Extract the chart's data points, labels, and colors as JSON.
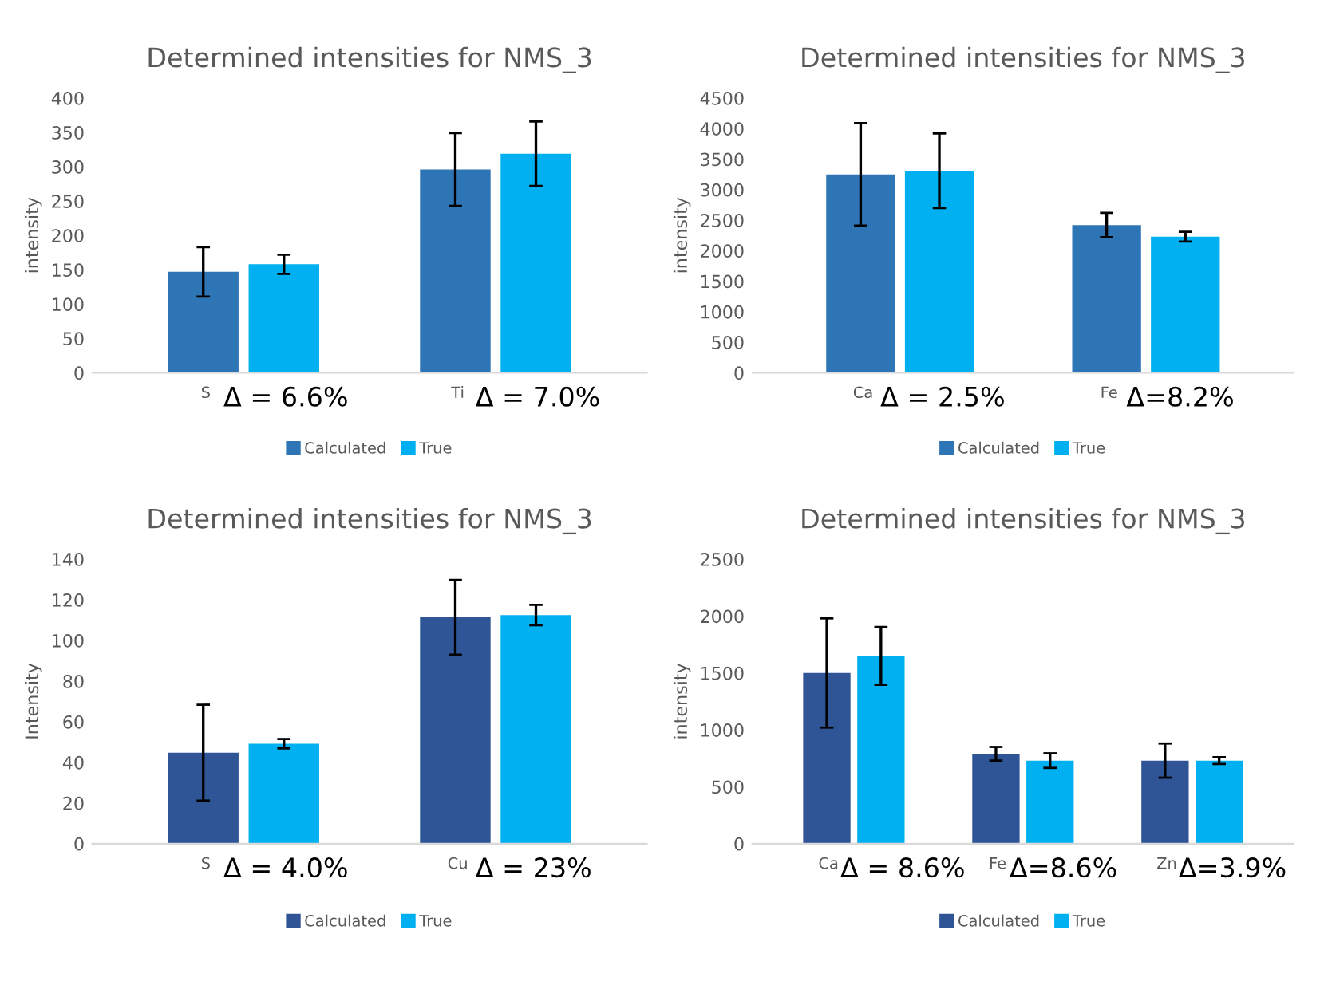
{
  "chart_data": [
    {
      "type": "bar",
      "title": "Determined intensities for NMS_3",
      "ylabel": "intensity",
      "categories": [
        "S",
        "Ti"
      ],
      "ylim": [
        0,
        400
      ],
      "yticks": [
        0,
        50,
        100,
        150,
        200,
        250,
        300,
        350,
        400
      ],
      "grid": false,
      "legend": "bottom",
      "annotations": [
        "Δ = 6.6%",
        "Δ = 7.0%"
      ],
      "series": [
        {
          "name": "Calculated",
          "color": "#2e75b6",
          "values": [
            147,
            296
          ],
          "errors": [
            36,
            53
          ]
        },
        {
          "name": "True",
          "color": "#00b0f0",
          "values": [
            158,
            319
          ],
          "errors": [
            14,
            47
          ]
        }
      ]
    },
    {
      "type": "bar",
      "title": "Determined intensities for NMS_3",
      "ylabel": "intensity",
      "categories": [
        "Ca",
        "Fe"
      ],
      "ylim": [
        0,
        4500
      ],
      "yticks": [
        0,
        500,
        1000,
        1500,
        2000,
        2500,
        3000,
        3500,
        4000,
        4500
      ],
      "grid": false,
      "legend": "bottom",
      "annotations": [
        "Δ = 2.5%",
        "Δ=8.2%"
      ],
      "series": [
        {
          "name": "Calculated",
          "color": "#2e75b6",
          "values": [
            3250,
            2420
          ],
          "errors": [
            840,
            200
          ]
        },
        {
          "name": "True",
          "color": "#00b0f0",
          "values": [
            3310,
            2230
          ],
          "errors": [
            610,
            80
          ]
        }
      ]
    },
    {
      "type": "bar",
      "title": "Determined intensities for NMS_3",
      "ylabel": "Intensity",
      "categories": [
        "S",
        "Cu"
      ],
      "ylim": [
        0,
        140
      ],
      "yticks": [
        0,
        20,
        40,
        60,
        80,
        100,
        120,
        140
      ],
      "grid": false,
      "legend": "bottom",
      "annotations": [
        "Δ = 4.0%",
        "Δ = 23%"
      ],
      "series": [
        {
          "name": "Calculated",
          "color": "#2f5597",
          "values": [
            44.8,
            111.4
          ],
          "errors": [
            23.6,
            18.4
          ]
        },
        {
          "name": "True",
          "color": "#00b0f0",
          "values": [
            49.2,
            112.5
          ],
          "errors": [
            2.3,
            5
          ]
        }
      ]
    },
    {
      "type": "bar",
      "title": "Determined intensities for NMS_3",
      "ylabel": "intensity",
      "categories": [
        "Ca",
        "Fe",
        "Zn"
      ],
      "ylim": [
        0,
        2500
      ],
      "yticks": [
        0,
        500,
        1000,
        1500,
        2000,
        2500
      ],
      "grid": false,
      "legend": "bottom",
      "annotations": [
        "Δ = 8.6%",
        "Δ=8.6%",
        "Δ=3.9%"
      ],
      "series": [
        {
          "name": "Calculated",
          "color": "#2f5597",
          "values": [
            1500,
            790,
            730
          ],
          "errors": [
            480,
            60,
            150
          ]
        },
        {
          "name": "True",
          "color": "#00b0f0",
          "values": [
            1650,
            730,
            730
          ],
          "errors": [
            254,
            64,
            30
          ]
        }
      ]
    }
  ]
}
